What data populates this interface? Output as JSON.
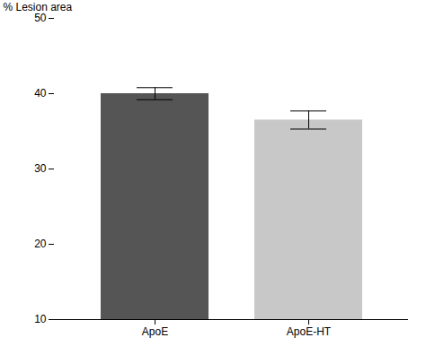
{
  "chart_data": {
    "type": "bar",
    "categories": [
      "ApoE",
      "ApoE-HT"
    ],
    "values": [
      40.0,
      36.5
    ],
    "errors": [
      0.8,
      1.2
    ],
    "colors": [
      "#555555",
      "#c8c8c8"
    ],
    "ylabel": "% Lesion area",
    "ylim": [
      10,
      50
    ],
    "yticks": [
      10,
      20,
      30,
      40,
      50
    ],
    "grid": false
  }
}
